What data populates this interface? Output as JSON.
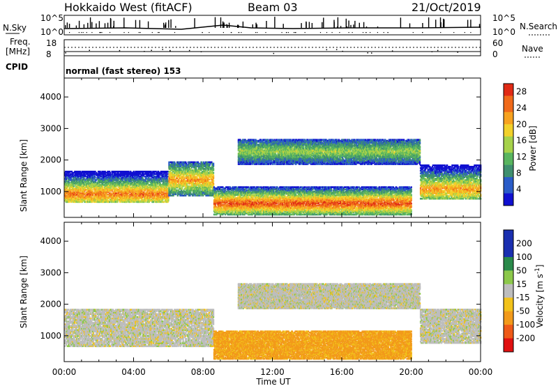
{
  "header": {
    "station": "Hokkaido West (fitACF)",
    "beam": "Beam 03",
    "date": "21/Oct/2019"
  },
  "top_panels": {
    "nsky_label": "N.Sky",
    "nsky_ticks": [
      "10^5",
      "10^0"
    ],
    "nsky_right_ticks": [
      "10^5",
      "10^0"
    ],
    "nsearch_label": "N.Search",
    "freq_label_1": "Freq.",
    "freq_label_2": "[MHz]",
    "freq_ticks": [
      "18",
      "8"
    ],
    "nave_ticks": [
      "60",
      "0"
    ],
    "nave_label": "Nave",
    "cpid_label": "CPID",
    "cpid_text": "normal (fast stereo) 153"
  },
  "axes": {
    "ylabel": "Slant Range [km]",
    "xlabel": "Time UT",
    "y_ticks": [
      "4000",
      "3000",
      "2000",
      "1000"
    ],
    "x_ticks": [
      "00:00",
      "04:00",
      "08:00",
      "12:00",
      "16:00",
      "20:00",
      "00:00"
    ]
  },
  "colorbars": {
    "power_label": "Power [dB]",
    "power_ticks": [
      "28",
      "24",
      "20",
      "16",
      "12",
      "8",
      "4"
    ],
    "velocity_label": "Velocity [m s",
    "velocity_sup": "-1",
    "velocity_label_end": "]",
    "velocity_ticks": [
      "200",
      "100",
      "50",
      "15",
      "-15",
      "-50",
      "-100",
      "-200"
    ]
  },
  "chart_data": [
    {
      "type": "heatmap",
      "title": "Power",
      "xlabel": "Time UT",
      "ylabel": "Slant Range [km]",
      "xlim": [
        0,
        24
      ],
      "ylim": [
        180,
        4600
      ],
      "colorbar": {
        "label": "Power [dB]",
        "range": [
          0,
          30
        ],
        "ticks": [
          4,
          8,
          12,
          16,
          20,
          24,
          28
        ]
      },
      "bands": [
        {
          "t0": 0.0,
          "t1": 6.0,
          "r0": 700,
          "r1": 1700,
          "peak_range": 950,
          "value": 20
        },
        {
          "t0": 6.0,
          "t1": 8.6,
          "r0": 900,
          "r1": 2000,
          "peak_range": 1400,
          "value": 18
        },
        {
          "t0": 8.6,
          "t1": 20.0,
          "r0": 300,
          "r1": 1200,
          "peak_range": 650,
          "value": 22
        },
        {
          "t0": 10.0,
          "t1": 20.5,
          "r0": 1900,
          "r1": 2700,
          "peak_range": 2300,
          "value": 12
        },
        {
          "t0": 20.5,
          "t1": 24.0,
          "r0": 800,
          "r1": 1900,
          "peak_range": 1100,
          "value": 18
        }
      ]
    },
    {
      "type": "heatmap",
      "title": "Velocity",
      "xlabel": "Time UT",
      "ylabel": "Slant Range [km]",
      "xlim": [
        0,
        24
      ],
      "ylim": [
        180,
        4600
      ],
      "colorbar": {
        "label": "Velocity [m s-1]",
        "range": [
          -250,
          250
        ],
        "ticks": [
          -200,
          -100,
          -50,
          -15,
          15,
          50,
          100,
          200
        ]
      },
      "bands": [
        {
          "t0": 0.0,
          "t1": 8.6,
          "r0": 700,
          "r1": 1900,
          "value": 0
        },
        {
          "t0": 8.6,
          "t1": 20.0,
          "r0": 300,
          "r1": 1200,
          "value": -60
        },
        {
          "t0": 10.0,
          "t1": 20.5,
          "r0": 1900,
          "r1": 2700,
          "value": 0
        },
        {
          "t0": 20.5,
          "t1": 24.0,
          "r0": 800,
          "r1": 1900,
          "value": 0
        }
      ]
    }
  ]
}
